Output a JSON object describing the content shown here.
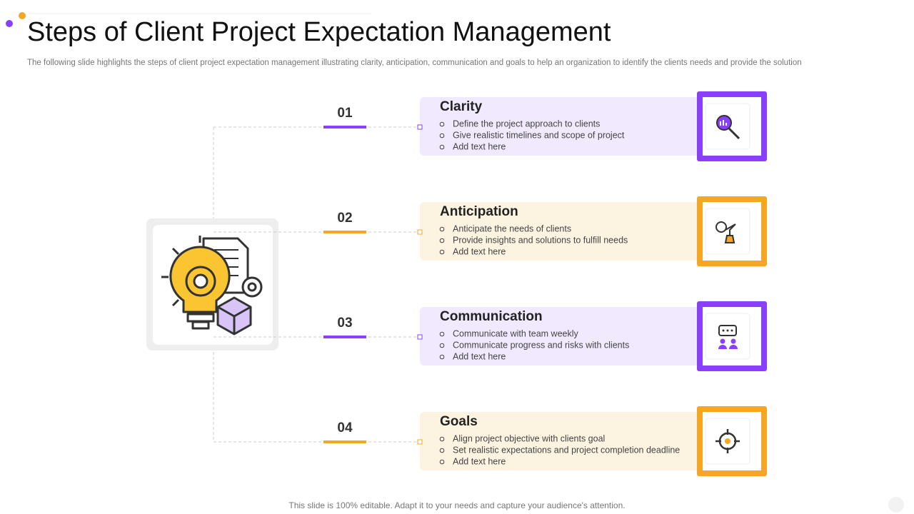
{
  "header": {
    "title": "Steps of Client Project Expectation Management",
    "subtitle": "The following slide highlights the steps of client project expectation management illustrating clarity, anticipation, communication and goals to help an organization to identify the clients needs and provide the solution"
  },
  "steps": [
    {
      "number": "01",
      "title": "Clarity",
      "bullets": [
        "Define the project approach to clients",
        "Give realistic timelines and scope of project",
        "Add text here"
      ]
    },
    {
      "number": "02",
      "title": "Anticipation",
      "bullets": [
        "Anticipate the needs of clients",
        "Provide  insights and solutions to fulfill needs",
        "Add text here"
      ]
    },
    {
      "number": "03",
      "title": "Communication",
      "bullets": [
        "Communicate with team  weekly",
        "Communicate progress and risks with clients",
        "Add text here"
      ]
    },
    {
      "number": "04",
      "title": "Goals",
      "bullets": [
        "Align project objective with clients goal",
        "Set realistic expectations and project completion deadline",
        "Add text here"
      ]
    }
  ],
  "footer": "This slide is 100% editable. Adapt it to your needs and capture your audience's attention."
}
